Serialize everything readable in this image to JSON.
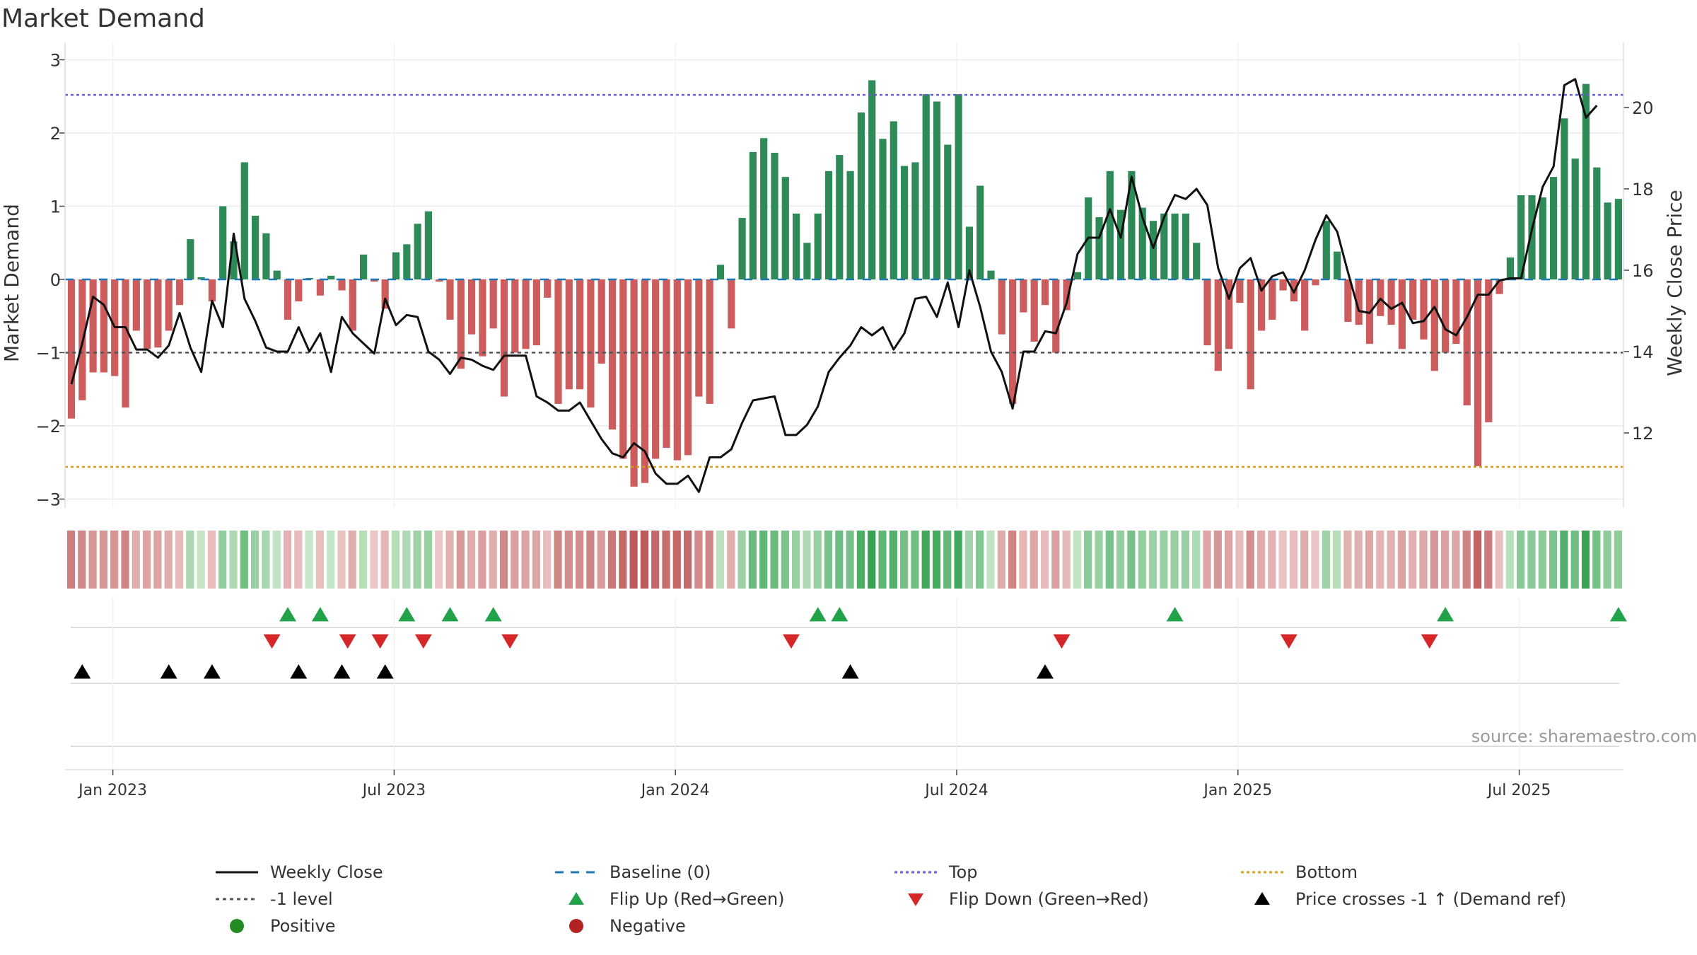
{
  "chart_data": {
    "type": "bar",
    "title": "Market Demand",
    "ylabel": "Market Demand",
    "y2label": "Weekly Close Price",
    "ylim": [
      -3.2,
      3.15
    ],
    "y2lim": [
      10.2,
      21.5
    ],
    "yticks": [
      {
        "value": 3,
        "label": "3"
      },
      {
        "value": 2,
        "label": "2"
      },
      {
        "value": 1,
        "label": "1"
      },
      {
        "value": 0,
        "label": "0"
      },
      {
        "value": -1,
        "label": "−1"
      },
      {
        "value": -2,
        "label": "−2"
      },
      {
        "value": -3,
        "label": "−3"
      }
    ],
    "y2ticks": [
      {
        "value": 12,
        "label": "12"
      },
      {
        "value": 14,
        "label": "14"
      },
      {
        "value": 16,
        "label": "16"
      },
      {
        "value": 18,
        "label": "18"
      },
      {
        "value": 20,
        "label": "20"
      }
    ],
    "xticks": [
      {
        "index": 2,
        "label": "Jan 2023"
      },
      {
        "index": 28,
        "label": "Jul 2023"
      },
      {
        "index": 54,
        "label": "Jan 2024"
      },
      {
        "index": 80,
        "label": "Jul 2024"
      },
      {
        "index": 106,
        "label": "Jan 2025"
      },
      {
        "index": 132,
        "label": "Jul 2025"
      }
    ],
    "first_week": "2022-12-18",
    "weeks": 145,
    "grid": true,
    "reference_lines": {
      "top": 2.52,
      "bottom": -2.56,
      "minus_one": -1,
      "baseline": 0
    },
    "demand": [
      -1.9,
      -1.65,
      -1.27,
      -1.27,
      -1.32,
      -1.75,
      -0.7,
      -0.95,
      -0.93,
      -0.7,
      -0.35,
      0.55,
      0.03,
      -0.3,
      1.0,
      0.52,
      1.6,
      0.87,
      0.63,
      0.12,
      -0.55,
      -0.3,
      0.02,
      -0.22,
      0.05,
      -0.15,
      -0.7,
      0.34,
      -0.03,
      -0.4,
      0.37,
      0.48,
      0.76,
      0.93,
      -0.03,
      -0.55,
      -1.22,
      -0.75,
      -1.05,
      -0.67,
      -1.6,
      -1.0,
      -0.95,
      -0.9,
      -0.25,
      -1.7,
      -1.5,
      -1.5,
      -1.75,
      -1.15,
      -2.05,
      -2.45,
      -2.83,
      -2.78,
      -2.45,
      -2.3,
      -2.47,
      -2.4,
      -1.6,
      -1.7,
      0.2,
      -0.67,
      0.84,
      1.74,
      1.93,
      1.73,
      1.4,
      0.9,
      0.5,
      0.9,
      1.48,
      1.7,
      1.48,
      2.28,
      2.72,
      1.92,
      2.16,
      1.55,
      1.6,
      2.53,
      2.43,
      1.84,
      2.53,
      0.72,
      1.28,
      0.12,
      -0.75,
      -1.7,
      -0.45,
      -0.85,
      -0.35,
      -1.0,
      -0.42,
      0.1,
      1.12,
      0.85,
      1.48,
      0.95,
      1.48,
      0.98,
      0.8,
      0.9,
      0.9,
      0.9,
      0.5,
      -0.9,
      -1.25,
      -0.95,
      -0.32,
      -1.5,
      -0.7,
      -0.55,
      -0.15,
      -0.3,
      -0.7,
      -0.08,
      0.8,
      0.38,
      -0.58,
      -0.62,
      -0.88,
      -0.5,
      -0.62,
      -0.95,
      -0.55,
      -0.82,
      -1.25,
      -1.0,
      -0.88,
      -1.72,
      -2.55,
      -1.95,
      -0.2,
      0.3,
      1.15,
      1.15,
      1.12,
      1.4,
      2.2,
      1.65,
      2.67,
      1.53,
      1.05,
      1.1
    ],
    "close": [
      13.2,
      14.2,
      15.35,
      15.15,
      14.6,
      14.6,
      14.05,
      14.05,
      13.85,
      14.15,
      14.95,
      14.1,
      13.5,
      15.25,
      14.6,
      16.9,
      15.3,
      14.75,
      14.1,
      14.0,
      14.0,
      14.6,
      14.0,
      14.45,
      13.5,
      14.85,
      14.45,
      14.2,
      13.95,
      15.3,
      14.65,
      14.9,
      14.85,
      14.0,
      13.8,
      13.45,
      13.85,
      13.8,
      13.65,
      13.55,
      13.9,
      13.9,
      13.9,
      12.9,
      12.75,
      12.55,
      12.55,
      12.75,
      12.3,
      11.85,
      11.5,
      11.4,
      11.75,
      11.55,
      11.0,
      10.75,
      10.75,
      10.95,
      10.55,
      11.4,
      11.4,
      11.6,
      12.25,
      12.8,
      12.85,
      12.9,
      11.95,
      11.95,
      12.2,
      12.65,
      13.5,
      13.85,
      14.15,
      14.6,
      14.4,
      14.6,
      14.05,
      14.45,
      15.3,
      15.35,
      14.85,
      15.7,
      14.6,
      16.0,
      15.1,
      14.0,
      13.5,
      12.6,
      14.0,
      14.0,
      14.5,
      14.45,
      15.2,
      16.4,
      16.8,
      16.8,
      17.5,
      16.8,
      18.3,
      17.3,
      16.55,
      17.3,
      17.85,
      17.75,
      18.0,
      17.6,
      16.05,
      15.3,
      16.05,
      16.3,
      15.5,
      15.85,
      15.95,
      15.45,
      16.0,
      16.75,
      17.35,
      16.95,
      15.95,
      15.0,
      14.95,
      15.3,
      15.05,
      15.2,
      14.7,
      14.75,
      15.1,
      14.55,
      14.4,
      14.85,
      15.4,
      15.4,
      15.75,
      15.8,
      15.8,
      17.0,
      18.05,
      18.55,
      20.55,
      20.7,
      19.75,
      20.05
    ],
    "dividers": [
      {
        "index": 0,
        "label": "Weekly Close"
      },
      {
        "index": 1,
        "label": "-1 level"
      }
    ],
    "heat_strip": {
      "note": "weekly heat cells colored by demand value"
    },
    "flip_up_idx": [
      10,
      13,
      21,
      25,
      29,
      59,
      61,
      92,
      117,
      133
    ],
    "flip_down_idx": [
      12,
      19,
      22,
      26,
      34,
      60,
      85,
      106,
      119
    ],
    "cross_idx": [
      1,
      9,
      13,
      21,
      25,
      29,
      72,
      90
    ],
    "source": "source: sharemaestro.com"
  },
  "legend": {
    "items": [
      {
        "label": "Weekly Close",
        "icon": "black-line"
      },
      {
        "label": "Baseline (0)",
        "icon": "blue-dash-line"
      },
      {
        "label": "Top",
        "icon": "purple-dotted-line"
      },
      {
        "label": "Bottom",
        "icon": "orange-dotted-line"
      },
      {
        "label": "-1 level",
        "icon": "gray-dotted-line"
      },
      {
        "label": "Flip Up (Red→Green)",
        "icon": "green-triangle-up"
      },
      {
        "label": "Flip Down (Green→Red)",
        "icon": "red-triangle-down"
      },
      {
        "label": "Price crosses -1 ↑ (Demand ref)",
        "icon": "black-triangle-up"
      },
      {
        "label": "Positive",
        "icon": "green-dot"
      },
      {
        "label": "Negative",
        "icon": "red-dot"
      }
    ]
  },
  "colors": {
    "positive_bar": "#2e8b57",
    "negative_bar": "#cd5c5c",
    "close_line": "#111111",
    "baseline": "#1f77b4",
    "top_line": "#6a5acd",
    "bottom_line": "#d4a017",
    "minus_one_line": "#555555",
    "flip_up": "#22a34a",
    "flip_down": "#d62728",
    "cross": "#000000",
    "positive_dot": "#228b22",
    "negative_dot": "#b22222"
  }
}
